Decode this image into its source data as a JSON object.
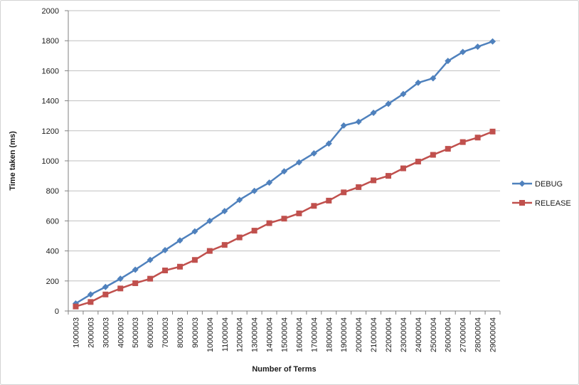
{
  "window": {
    "background": "#ffffff",
    "border_color": "#d3d3d3"
  },
  "colors": {
    "gridline": "#bfbfbf",
    "axis": "#808080",
    "text": "#1a1a1a"
  },
  "chart_data": {
    "type": "line",
    "title": "",
    "xlabel": "Number of Terms",
    "ylabel": "Time taken (ms)",
    "ylim": [
      0,
      2000
    ],
    "ytick_step": 200,
    "grid": "horizontal-major",
    "legend_position": "right",
    "x_label_rotation": 90,
    "categories": [
      "1000003",
      "2000003",
      "3000003",
      "4000003",
      "5000003",
      "6000003",
      "7000003",
      "8000003",
      "9000003",
      "10000004",
      "11000004",
      "12000004",
      "13000004",
      "14000004",
      "15000004",
      "16000004",
      "17000004",
      "18000004",
      "19000004",
      "20000004",
      "21000004",
      "22000004",
      "23000004",
      "24000004",
      "25000004",
      "26000004",
      "27000004",
      "28000004",
      "29000004"
    ],
    "series": [
      {
        "name": "DEBUG",
        "color": "#4F81BD",
        "marker": "diamond",
        "values": [
          50,
          110,
          160,
          215,
          275,
          340,
          405,
          470,
          530,
          600,
          665,
          740,
          800,
          855,
          930,
          990,
          1050,
          1115,
          1235,
          1260,
          1320,
          1380,
          1445,
          1520,
          1550,
          1665,
          1725,
          1760,
          1795
        ]
      },
      {
        "name": "RELEASE",
        "color": "#C0504D",
        "marker": "square",
        "values": [
          30,
          60,
          110,
          150,
          185,
          215,
          270,
          295,
          340,
          400,
          440,
          490,
          535,
          585,
          615,
          650,
          700,
          735,
          790,
          825,
          870,
          900,
          950,
          995,
          1040,
          1080,
          1125,
          1155,
          1195
        ]
      }
    ]
  }
}
